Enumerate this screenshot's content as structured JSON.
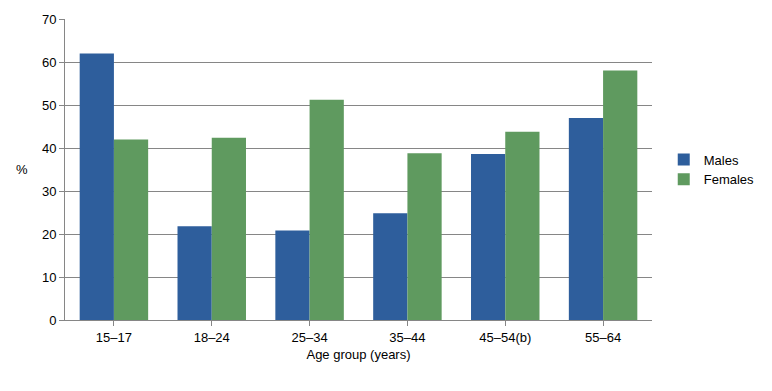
{
  "chart_data": {
    "type": "bar",
    "x_label": "Age group (years)",
    "y_label": "%",
    "categories": [
      "15–17",
      "18–24",
      "25–34",
      "35–44",
      "45–54(b)",
      "55–64"
    ],
    "series": [
      {
        "name": "Males",
        "color": "#2e5e9c",
        "values": [
          62,
          21.8,
          20.8,
          24.8,
          38.6,
          47
        ]
      },
      {
        "name": "Females",
        "color": "#5f9a5f",
        "values": [
          42,
          42.4,
          51.2,
          38.8,
          43.8,
          58
        ]
      }
    ],
    "ylim": [
      0,
      70
    ],
    "yticks": [
      0,
      10,
      20,
      30,
      40,
      50,
      60,
      70
    ],
    "grid": true,
    "legend": "right"
  }
}
